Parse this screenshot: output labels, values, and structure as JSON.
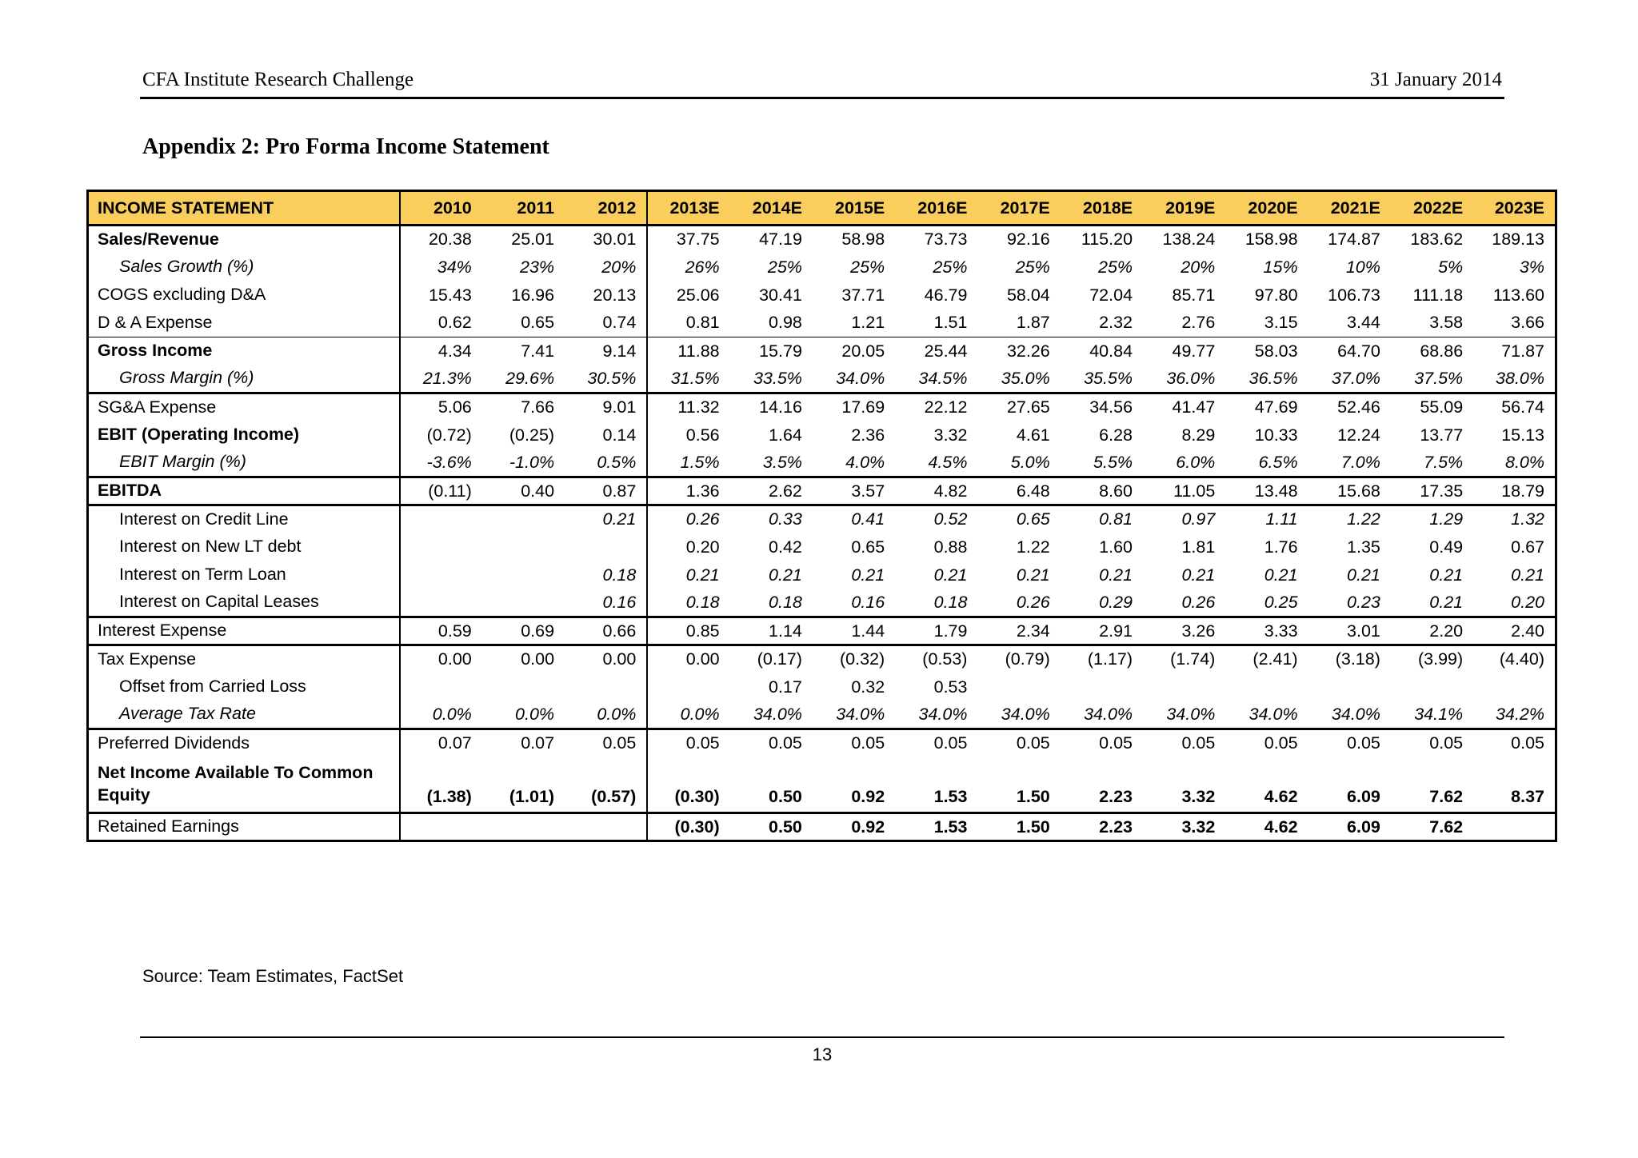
{
  "header": {
    "left": "CFA Institute Research Challenge",
    "right": "31 January 2014"
  },
  "title": "Appendix 2: Pro Forma Income Statement",
  "colors": {
    "header_bg": "#F9CE5D",
    "border": "#000000",
    "text": "#000000",
    "page_bg": "#FFFFFF"
  },
  "table": {
    "header_label": "INCOME STATEMENT",
    "years": [
      "2010",
      "2011",
      "2012",
      "2013E",
      "2014E",
      "2015E",
      "2016E",
      "2017E",
      "2018E",
      "2019E",
      "2020E",
      "2021E",
      "2022E",
      "2023E"
    ],
    "rows": [
      {
        "label": "Sales/Revenue",
        "label_bold": true,
        "values": [
          "20.38",
          "25.01",
          "30.01",
          "37.75",
          "47.19",
          "58.98",
          "73.73",
          "92.16",
          "115.20",
          "138.24",
          "158.98",
          "174.87",
          "183.62",
          "189.13"
        ]
      },
      {
        "label": "Sales Growth (%)",
        "label_italic": true,
        "indent": true,
        "values_italic": true,
        "values": [
          "34%",
          "23%",
          "20%",
          "26%",
          "25%",
          "25%",
          "25%",
          "25%",
          "25%",
          "20%",
          "15%",
          "10%",
          "5%",
          "3%"
        ]
      },
      {
        "label": "COGS excluding D&A",
        "values": [
          "15.43",
          "16.96",
          "20.13",
          "25.06",
          "30.41",
          "37.71",
          "46.79",
          "58.04",
          "72.04",
          "85.71",
          "97.80",
          "106.73",
          "111.18",
          "113.60"
        ]
      },
      {
        "label": "D & A Expense",
        "border": "thin",
        "values": [
          "0.62",
          "0.65",
          "0.74",
          "0.81",
          "0.98",
          "1.21",
          "1.51",
          "1.87",
          "2.32",
          "2.76",
          "3.15",
          "3.44",
          "3.58",
          "3.66"
        ]
      },
      {
        "label": "Gross Income",
        "label_bold": true,
        "values": [
          "4.34",
          "7.41",
          "9.14",
          "11.88",
          "15.79",
          "20.05",
          "25.44",
          "32.26",
          "40.84",
          "49.77",
          "58.03",
          "64.70",
          "68.86",
          "71.87"
        ]
      },
      {
        "label": "Gross Margin (%)",
        "label_italic": true,
        "indent": true,
        "values_italic": true,
        "border": "thick",
        "values": [
          "21.3%",
          "29.6%",
          "30.5%",
          "31.5%",
          "33.5%",
          "34.0%",
          "34.5%",
          "35.0%",
          "35.5%",
          "36.0%",
          "36.5%",
          "37.0%",
          "37.5%",
          "38.0%"
        ]
      },
      {
        "label": "SG&A Expense",
        "values": [
          "5.06",
          "7.66",
          "9.01",
          "11.32",
          "14.16",
          "17.69",
          "22.12",
          "27.65",
          "34.56",
          "41.47",
          "47.69",
          "52.46",
          "55.09",
          "56.74"
        ]
      },
      {
        "label": "EBIT (Operating Income)",
        "label_bold": true,
        "values": [
          "(0.72)",
          "(0.25)",
          "0.14",
          "0.56",
          "1.64",
          "2.36",
          "3.32",
          "4.61",
          "6.28",
          "8.29",
          "10.33",
          "12.24",
          "13.77",
          "15.13"
        ]
      },
      {
        "label": "EBIT Margin (%)",
        "label_italic": true,
        "indent": true,
        "values_italic": true,
        "border": "thick",
        "values": [
          "-3.6%",
          "-1.0%",
          "0.5%",
          "1.5%",
          "3.5%",
          "4.0%",
          "4.5%",
          "5.0%",
          "5.5%",
          "6.0%",
          "6.5%",
          "7.0%",
          "7.5%",
          "8.0%"
        ]
      },
      {
        "label": "EBITDA",
        "label_bold": true,
        "border": "thick",
        "values": [
          "(0.11)",
          "0.40",
          "0.87",
          "1.36",
          "2.62",
          "3.57",
          "4.82",
          "6.48",
          "8.60",
          "11.05",
          "13.48",
          "15.68",
          "17.35",
          "18.79"
        ]
      },
      {
        "label": "Interest on Credit Line",
        "indent": true,
        "values_italic": true,
        "values": [
          "",
          "",
          "0.21",
          "0.26",
          "0.33",
          "0.41",
          "0.52",
          "0.65",
          "0.81",
          "0.97",
          "1.11",
          "1.22",
          "1.29",
          "1.32"
        ]
      },
      {
        "label": "Interest on New LT debt",
        "indent": true,
        "values": [
          "",
          "",
          "",
          "0.20",
          "0.42",
          "0.65",
          "0.88",
          "1.22",
          "1.60",
          "1.81",
          "1.76",
          "1.35",
          "0.49",
          "0.67"
        ]
      },
      {
        "label": "Interest on Term Loan",
        "indent": true,
        "values_italic": true,
        "values": [
          "",
          "",
          "0.18",
          "0.21",
          "0.21",
          "0.21",
          "0.21",
          "0.21",
          "0.21",
          "0.21",
          "0.21",
          "0.21",
          "0.21",
          "0.21"
        ]
      },
      {
        "label": "Interest on Capital Leases",
        "indent": true,
        "values_italic": true,
        "border": "thick",
        "values": [
          "",
          "",
          "0.16",
          "0.18",
          "0.18",
          "0.16",
          "0.18",
          "0.26",
          "0.29",
          "0.26",
          "0.25",
          "0.23",
          "0.21",
          "0.20"
        ]
      },
      {
        "label": "Interest Expense",
        "border": "thick",
        "values": [
          "0.59",
          "0.69",
          "0.66",
          "0.85",
          "1.14",
          "1.44",
          "1.79",
          "2.34",
          "2.91",
          "3.26",
          "3.33",
          "3.01",
          "2.20",
          "2.40"
        ]
      },
      {
        "label": "Tax Expense",
        "values": [
          "0.00",
          "0.00",
          "0.00",
          "0.00",
          "(0.17)",
          "(0.32)",
          "(0.53)",
          "(0.79)",
          "(1.17)",
          "(1.74)",
          "(2.41)",
          "(3.18)",
          "(3.99)",
          "(4.40)"
        ]
      },
      {
        "label": "Offset from Carried Loss",
        "indent": true,
        "values": [
          "",
          "",
          "",
          "",
          "0.17",
          "0.32",
          "0.53",
          "",
          "",
          "",
          "",
          "",
          "",
          ""
        ]
      },
      {
        "label": "Average Tax Rate",
        "label_italic": true,
        "indent": true,
        "values_italic": true,
        "border": "thick",
        "values": [
          "0.0%",
          "0.0%",
          "0.0%",
          "0.0%",
          "34.0%",
          "34.0%",
          "34.0%",
          "34.0%",
          "34.0%",
          "34.0%",
          "34.0%",
          "34.0%",
          "34.1%",
          "34.2%"
        ]
      },
      {
        "label": "Preferred Dividends",
        "values": [
          "0.07",
          "0.07",
          "0.05",
          "0.05",
          "0.05",
          "0.05",
          "0.05",
          "0.05",
          "0.05",
          "0.05",
          "0.05",
          "0.05",
          "0.05",
          "0.05"
        ]
      },
      {
        "label": "Net Income Available To Common\nEquity",
        "label_bold": true,
        "values_bold": true,
        "tall": true,
        "border": "thick",
        "values": [
          "(1.38)",
          "(1.01)",
          "(0.57)",
          "(0.30)",
          "0.50",
          "0.92",
          "1.53",
          "1.50",
          "2.23",
          "3.32",
          "4.62",
          "6.09",
          "7.62",
          "8.37"
        ]
      },
      {
        "label": "Retained Earnings",
        "values_bold": true,
        "values": [
          "",
          "",
          "",
          "(0.30)",
          "0.50",
          "0.92",
          "1.53",
          "1.50",
          "2.23",
          "3.32",
          "4.62",
          "6.09",
          "7.62",
          ""
        ]
      }
    ]
  },
  "source": "Source: Team Estimates, FactSet",
  "page_number": "13"
}
